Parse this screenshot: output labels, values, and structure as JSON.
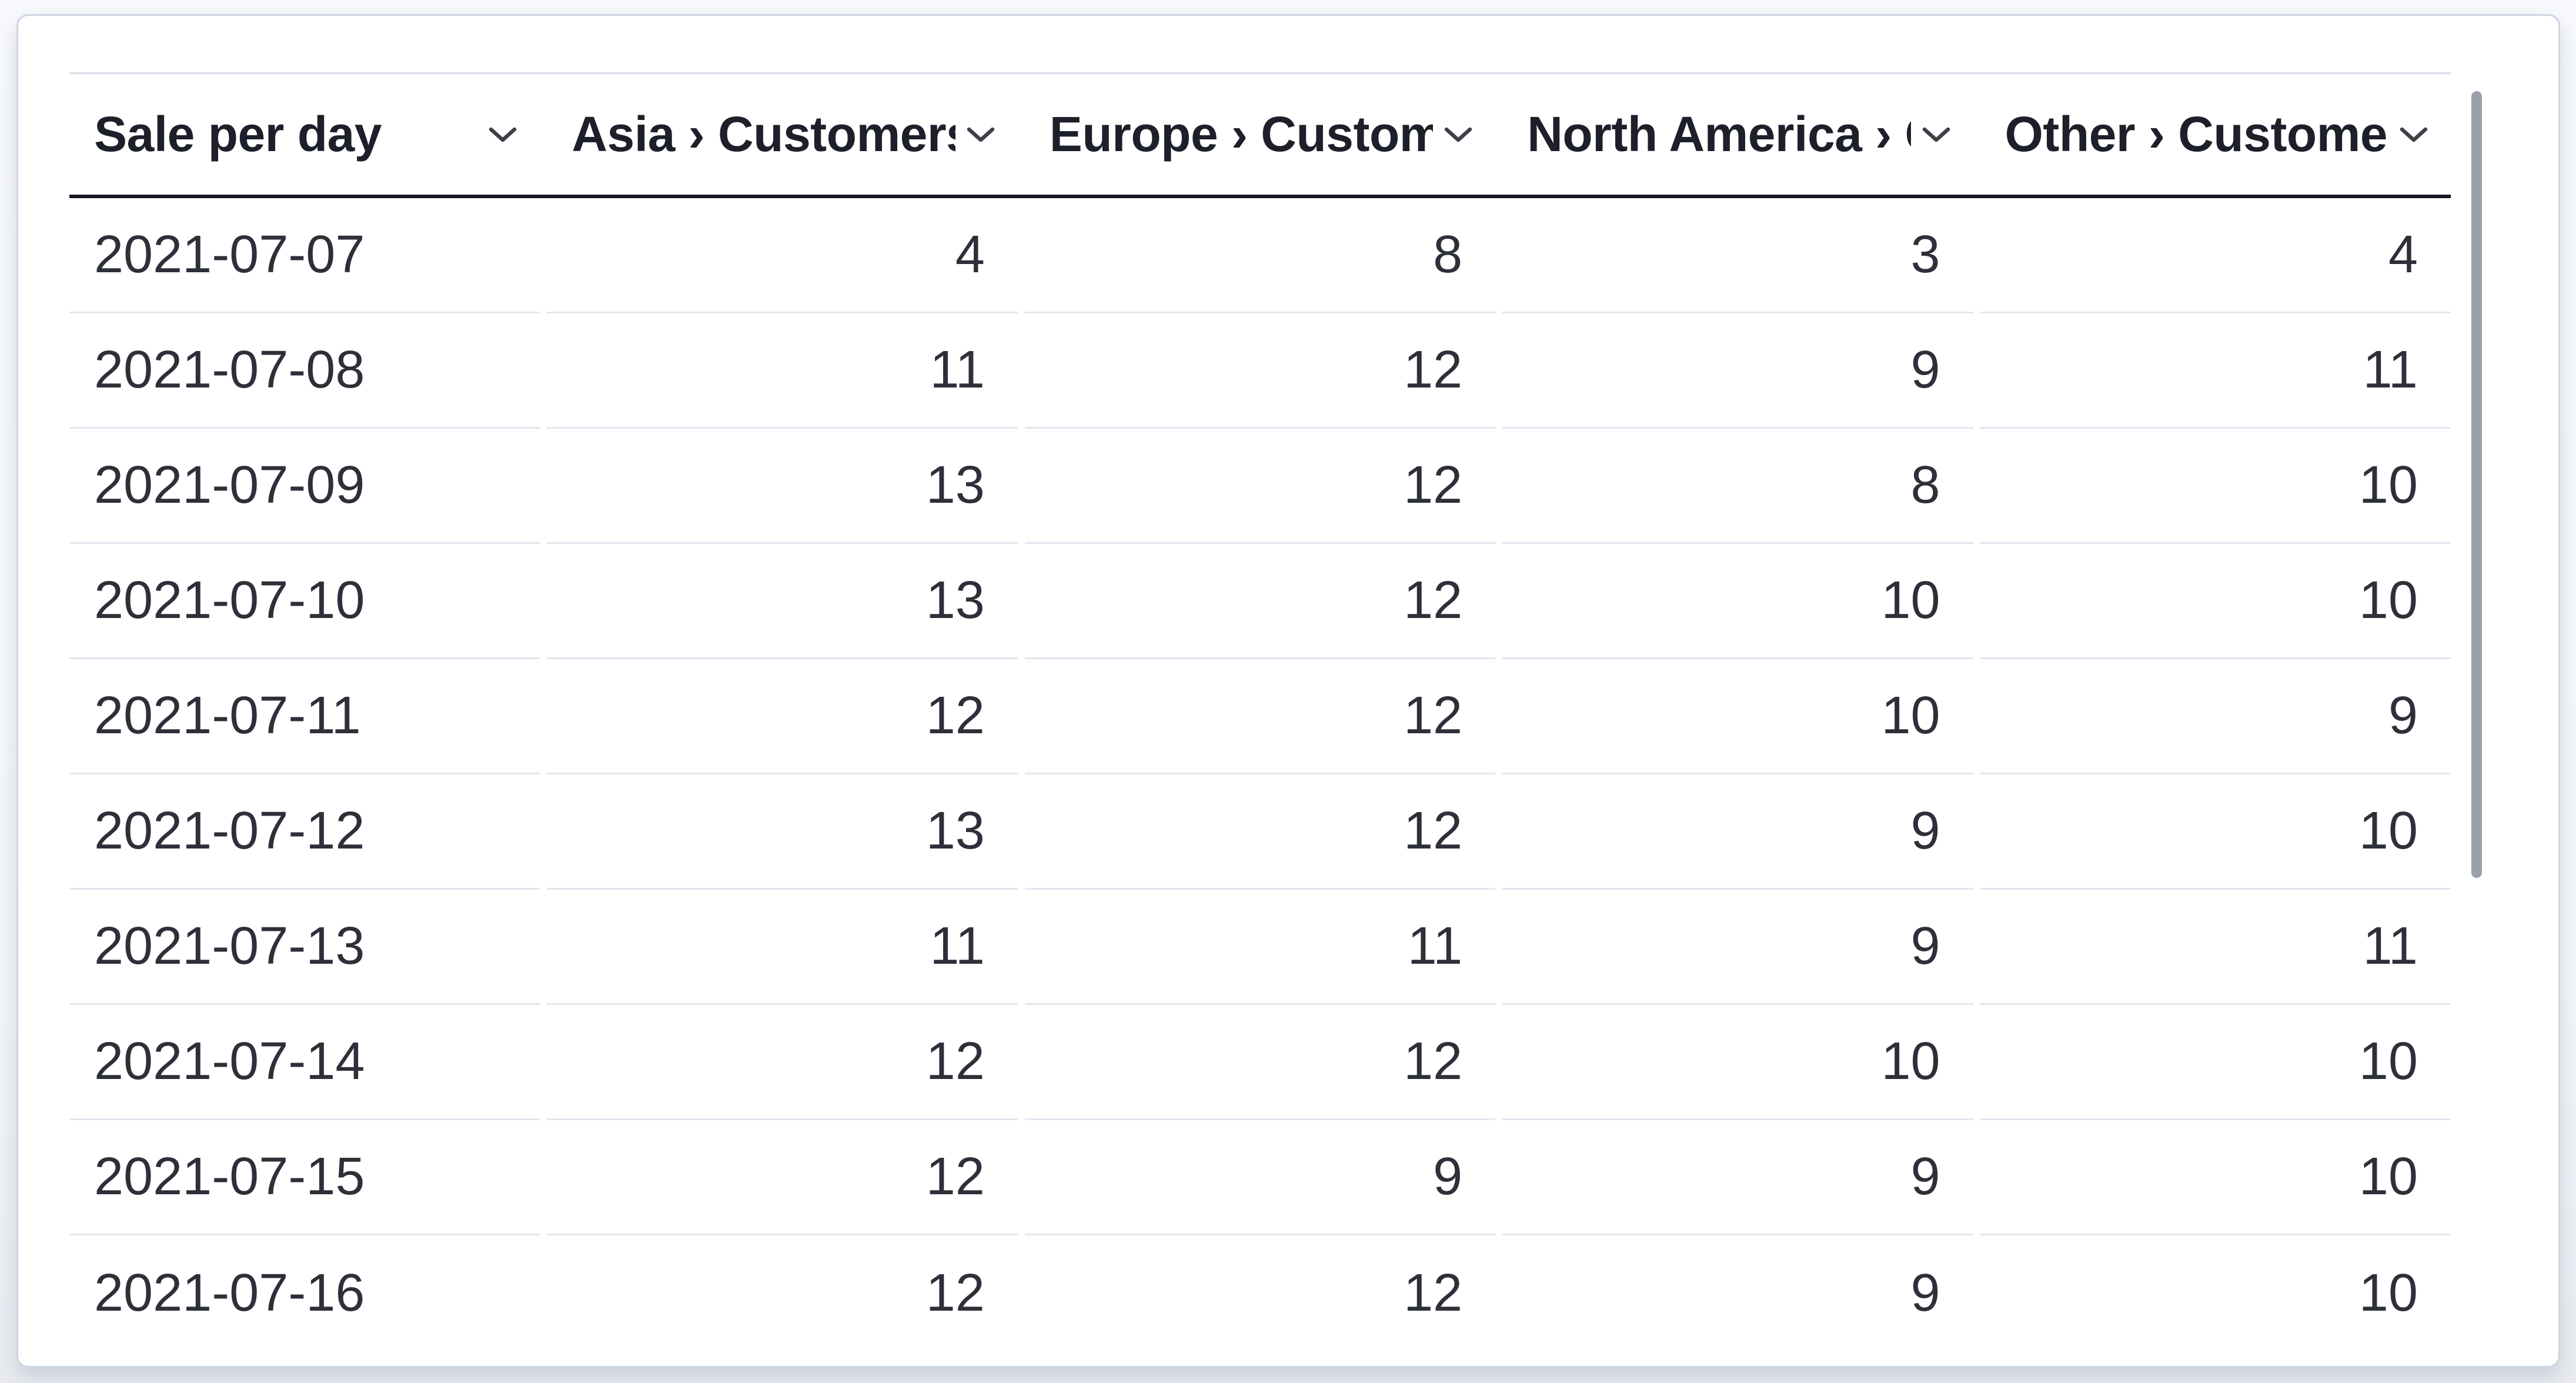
{
  "card": {
    "kind": "table-visualization-card"
  },
  "table": {
    "columns": [
      {
        "id": "sale_per_day",
        "label": "Sale per day",
        "align": "left",
        "sort_icon": "chevron-down-icon"
      },
      {
        "id": "asia",
        "label": "Asia › Customers",
        "align": "right",
        "sort_icon": "chevron-down-icon"
      },
      {
        "id": "europe",
        "label": "Europe › Customers",
        "align": "right",
        "sort_icon": "chevron-down-icon"
      },
      {
        "id": "north_america",
        "label": "North America › Customers",
        "align": "right",
        "sort_icon": "chevron-down-icon"
      },
      {
        "id": "other",
        "label": "Other › Customers",
        "align": "right",
        "sort_icon": "chevron-down-icon"
      }
    ],
    "rows": [
      [
        "2021-07-07",
        "4",
        "8",
        "3",
        "4"
      ],
      [
        "2021-07-08",
        "11",
        "12",
        "9",
        "11"
      ],
      [
        "2021-07-09",
        "13",
        "12",
        "8",
        "10"
      ],
      [
        "2021-07-10",
        "13",
        "12",
        "10",
        "10"
      ],
      [
        "2021-07-11",
        "12",
        "12",
        "10",
        "9"
      ],
      [
        "2021-07-12",
        "13",
        "12",
        "9",
        "10"
      ],
      [
        "2021-07-13",
        "11",
        "11",
        "9",
        "11"
      ],
      [
        "2021-07-14",
        "12",
        "12",
        "10",
        "10"
      ],
      [
        "2021-07-15",
        "12",
        "9",
        "9",
        "10"
      ],
      [
        "2021-07-16",
        "12",
        "12",
        "9",
        "10"
      ]
    ]
  },
  "scrollbar": {
    "orientation": "vertical",
    "position": "top"
  },
  "colors": {
    "background_top": "#f8f9fc",
    "background_bottom": "#e9ebf0",
    "card_background": "#ffffff",
    "card_border": "#ccd5e1",
    "header_text": "#1d202a",
    "header_underline": "#15181f",
    "body_text": "#2d3039",
    "row_separator": "#e1e7f0",
    "chevron": "#3c4049",
    "scrollbar_thumb": "#9aa0a9"
  }
}
